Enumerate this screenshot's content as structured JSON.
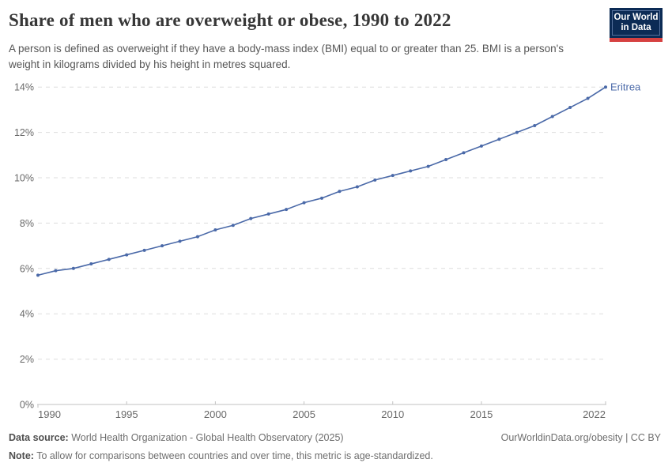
{
  "header": {
    "title": "Share of men who are overweight or obese, 1990 to 2022",
    "subtitle": "A person is defined as overweight if they have a body-mass index (BMI) equal to or greater than 25. BMI is a person's weight in kilograms divided by his height in metres squared.",
    "logo": {
      "line1": "Our World",
      "line2": "in Data"
    }
  },
  "colors": {
    "line": "#4a69a8",
    "grid": "#dddddd",
    "axis": "#c2c2c2",
    "tick_label": "#696969",
    "title": "#373737",
    "subtitle": "#565656",
    "footer": "#6e6e6e",
    "logo_bg": "#0c2b55",
    "logo_stripe": "#d64141"
  },
  "chart_data": {
    "type": "line",
    "title": "Share of men who are overweight or obese, 1990 to 2022",
    "xlabel": "",
    "ylabel": "",
    "xlim": [
      1990,
      2022
    ],
    "ylim": [
      0,
      14
    ],
    "grid": "horizontal-dashed",
    "legend_position": "end-of-line-label",
    "x_ticks": [
      1990,
      1995,
      2000,
      2005,
      2010,
      2015,
      2022
    ],
    "y_ticks": [
      {
        "value": 0,
        "label": "0%"
      },
      {
        "value": 2,
        "label": "2%"
      },
      {
        "value": 4,
        "label": "4%"
      },
      {
        "value": 6,
        "label": "6%"
      },
      {
        "value": 8,
        "label": "8%"
      },
      {
        "value": 10,
        "label": "10%"
      },
      {
        "value": 12,
        "label": "12%"
      },
      {
        "value": 14,
        "label": "14%"
      }
    ],
    "series": [
      {
        "name": "Eritrea",
        "color": "#4a69a8",
        "x": [
          1990,
          1991,
          1992,
          1993,
          1994,
          1995,
          1996,
          1997,
          1998,
          1999,
          2000,
          2001,
          2002,
          2003,
          2004,
          2005,
          2006,
          2007,
          2008,
          2009,
          2010,
          2011,
          2012,
          2013,
          2014,
          2015,
          2016,
          2017,
          2018,
          2019,
          2020,
          2021,
          2022
        ],
        "values": [
          5.7,
          5.9,
          6.0,
          6.2,
          6.4,
          6.6,
          6.8,
          7.0,
          7.2,
          7.4,
          7.7,
          7.9,
          8.2,
          8.4,
          8.6,
          8.9,
          9.1,
          9.4,
          9.6,
          9.9,
          10.1,
          10.3,
          10.5,
          10.8,
          11.1,
          11.4,
          11.7,
          12.0,
          12.3,
          12.7,
          13.1,
          13.5,
          14.0
        ]
      }
    ]
  },
  "footer": {
    "datasource_label": "Data source:",
    "datasource_text": " World Health Organization - Global Health Observatory (2025)",
    "link_text": "OurWorldinData.org/obesity | CC BY",
    "note_label": "Note:",
    "note_text": " To allow for comparisons between countries and over time, this metric is age-standardized."
  }
}
